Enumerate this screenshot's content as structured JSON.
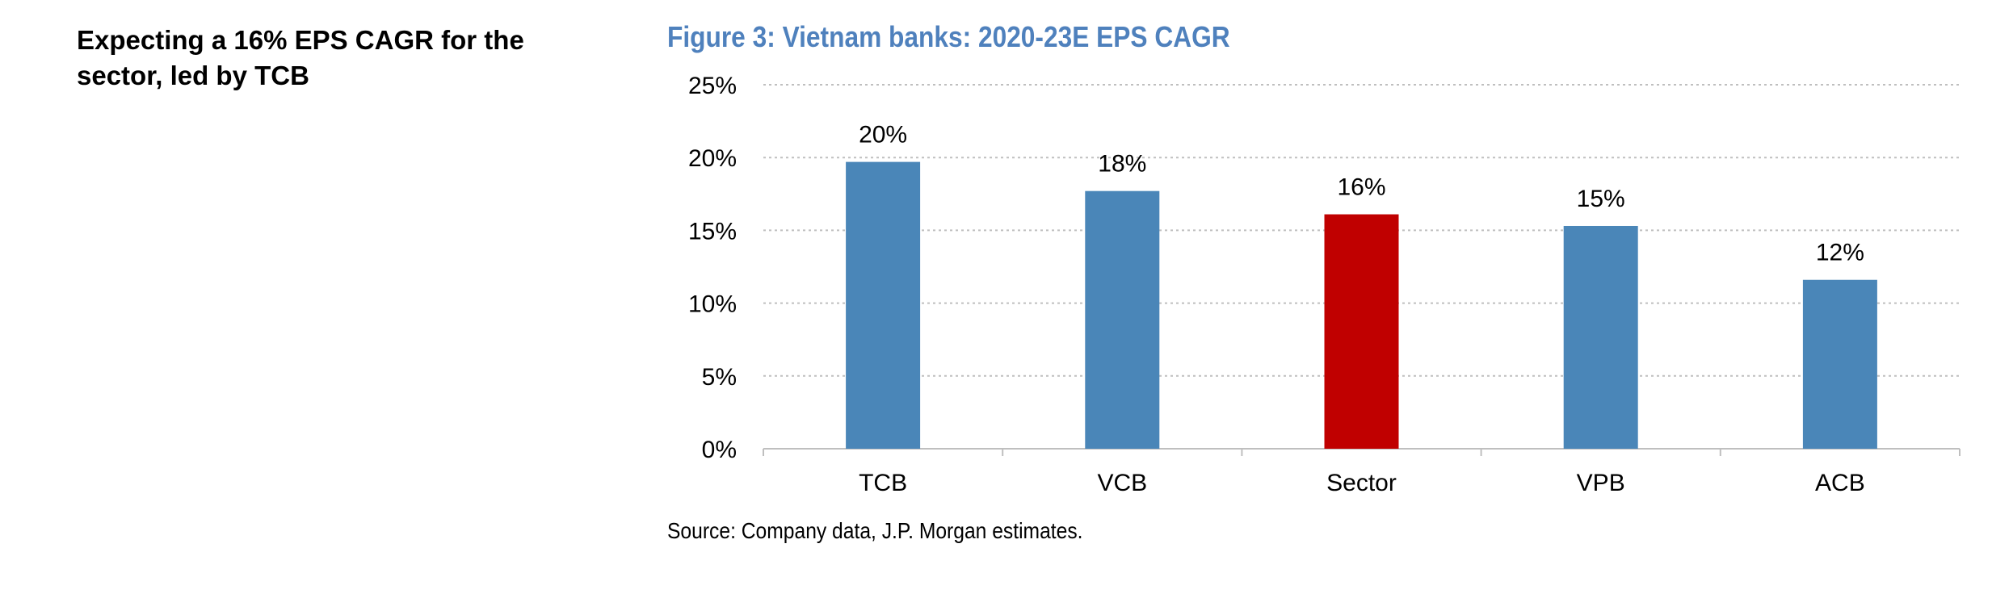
{
  "sidebar": {
    "heading": "Expecting a 16% EPS CAGR for the sector, led by TCB"
  },
  "figure": {
    "title": "Figure 3: Vietnam banks: 2020-23E EPS CAGR",
    "title_color": "#4F81BD",
    "source": "Source: Company data, J.P. Morgan estimates."
  },
  "colors": {
    "bank_bar": "#4A86B8",
    "sector_bar": "#C00000",
    "gridline": "#BFBFBF",
    "axis": "#BFBFBF",
    "text": "#000000"
  },
  "chart_data": {
    "type": "bar",
    "title": "Figure 3: Vietnam banks: 2020-23E EPS CAGR",
    "categories": [
      "TCB",
      "VCB",
      "Sector",
      "VPB",
      "ACB"
    ],
    "values": [
      19.7,
      17.7,
      16.1,
      15.3,
      11.6
    ],
    "data_labels": [
      "20%",
      "18%",
      "16%",
      "15%",
      "12%"
    ],
    "highlight": [
      "bank",
      "bank",
      "sector",
      "bank",
      "bank"
    ],
    "ylim": [
      0,
      25
    ],
    "yticks": [
      0,
      5,
      10,
      15,
      20,
      25
    ],
    "ytick_labels": [
      "0%",
      "5%",
      "10%",
      "15%",
      "20%",
      "25%"
    ],
    "grid": true,
    "legend": "none"
  }
}
